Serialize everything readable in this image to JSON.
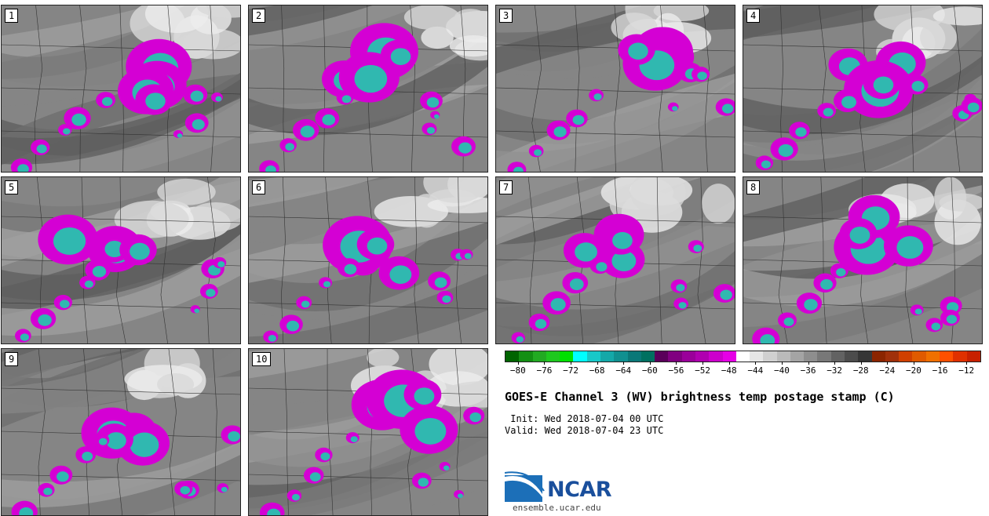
{
  "panels": [
    {
      "label": "1"
    },
    {
      "label": "2"
    },
    {
      "label": "3"
    },
    {
      "label": "4"
    },
    {
      "label": "5"
    },
    {
      "label": "6"
    },
    {
      "label": "7"
    },
    {
      "label": "8"
    },
    {
      "label": "9"
    },
    {
      "label": "10"
    }
  ],
  "colorbar": {
    "colors": [
      "#006400",
      "#138f13",
      "#22aa22",
      "#1ec81e",
      "#00e000",
      "#00ffff",
      "#18c8c8",
      "#14a8a8",
      "#109090",
      "#0a7878",
      "#007060",
      "#5a005a",
      "#800080",
      "#9a009a",
      "#b000b0",
      "#cc00cc",
      "#e600e6",
      "#ffffff",
      "#e6e6e6",
      "#d0d0d0",
      "#bababa",
      "#a4a4a4",
      "#8e8e8e",
      "#787878",
      "#626262",
      "#4c4c4c",
      "#363636",
      "#8b2500",
      "#a0300a",
      "#d04000",
      "#e05a00",
      "#f07000",
      "#ff5000",
      "#e03000",
      "#c82000"
    ],
    "tick_labels": [
      "−80",
      "−76",
      "−72",
      "−68",
      "−64",
      "−60",
      "−56",
      "−52",
      "−48",
      "−44",
      "−40",
      "−36",
      "−32",
      "−28",
      "−24",
      "−20",
      "−16",
      "−12"
    ],
    "tick_values": [
      -80,
      -76,
      -72,
      -68,
      -64,
      -60,
      -56,
      -52,
      -48,
      -44,
      -40,
      -36,
      -32,
      -28,
      -24,
      -20,
      -16,
      -12
    ],
    "min": -82,
    "max": -10
  },
  "title": "GOES-E Channel 3 (WV) brightness temp postage stamp (C)",
  "init_line": " Init: Wed 2018-07-04 00 UTC",
  "valid_line": "Valid: Wed 2018-07-04 23 UTC",
  "logo_text": "NCAR",
  "site": "ensemble.ucar.edu"
}
